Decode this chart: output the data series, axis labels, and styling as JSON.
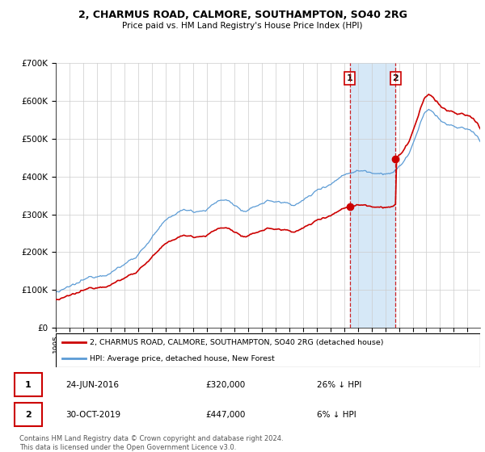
{
  "title": "2, CHARMUS ROAD, CALMORE, SOUTHAMPTON, SO40 2RG",
  "subtitle": "Price paid vs. HM Land Registry's House Price Index (HPI)",
  "legend_line1": "2, CHARMUS ROAD, CALMORE, SOUTHAMPTON, SO40 2RG (detached house)",
  "legend_line2": "HPI: Average price, detached house, New Forest",
  "footnote": "Contains HM Land Registry data © Crown copyright and database right 2024.\nThis data is licensed under the Open Government Licence v3.0.",
  "sale1_date": "24-JUN-2016",
  "sale1_price": "£320,000",
  "sale1_hpi": "26% ↓ HPI",
  "sale2_date": "30-OCT-2019",
  "sale2_price": "£447,000",
  "sale2_hpi": "6% ↓ HPI",
  "hpi_color": "#5b9bd5",
  "sale_color": "#cc0000",
  "shade_color": "#d6e8f7",
  "ylim": [
    0,
    700000
  ],
  "yticks": [
    0,
    100000,
    200000,
    300000,
    400000,
    500000,
    600000,
    700000
  ],
  "ytick_labels": [
    "£0",
    "£100K",
    "£200K",
    "£300K",
    "£400K",
    "£500K",
    "£600K",
    "£700K"
  ]
}
